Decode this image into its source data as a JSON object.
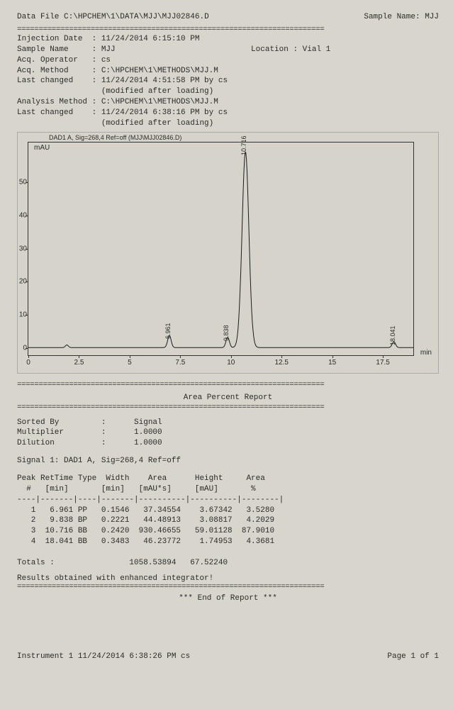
{
  "header": {
    "data_file_label": "Data File",
    "data_file_path": "C:\\HPCHEM\\1\\DATA\\MJJ\\MJJ02846.D",
    "sample_name_label": "Sample Name:",
    "sample_name_value": "MJJ"
  },
  "separator": "=======================================================================",
  "meta": [
    {
      "label": "Injection Date",
      "value": "11/24/2014 6:15:10 PM"
    },
    {
      "label": "Sample Name",
      "value": "MJJ",
      "extra_label": "Location :",
      "extra_value": "Vial 1"
    },
    {
      "label": "Acq. Operator",
      "value": "cs"
    },
    {
      "label": "Acq. Method",
      "value": "C:\\HPCHEM\\1\\METHODS\\MJJ.M"
    },
    {
      "label": "Last changed",
      "value": "11/24/2014 4:51:58 PM by cs"
    },
    {
      "label": "",
      "value": "(modified after loading)"
    },
    {
      "label": "Analysis Method",
      "value": "C:\\HPCHEM\\1\\METHODS\\MJJ.M"
    },
    {
      "label": "Last changed",
      "value": "11/24/2014 6:38:16 PM by cs"
    },
    {
      "label": "",
      "value": "(modified after loading)"
    }
  ],
  "chart": {
    "title": "DAD1 A, Sig=268,4 Ref=off (MJJ\\MJJ02846.D)",
    "ylabel": "mAU",
    "xlabel": "min",
    "ylim": [
      -2,
      62
    ],
    "xlim": [
      0,
      19
    ],
    "yticks": [
      0,
      10,
      20,
      30,
      40,
      50
    ],
    "xticks": [
      0,
      2.5,
      5,
      7.5,
      10,
      12.5,
      15,
      17.5
    ],
    "line_color": "#1a1a1a",
    "background": "#d6d4ca",
    "peaks": [
      {
        "rt": 6.961,
        "height": 3.67,
        "label": "6.961"
      },
      {
        "rt": 9.838,
        "height": 3.09,
        "label": "9.838"
      },
      {
        "rt": 10.716,
        "height": 59.01,
        "label": "10.716"
      },
      {
        "rt": 18.041,
        "height": 1.75,
        "label": "18.041"
      }
    ]
  },
  "area_report": {
    "title": "Area Percent Report",
    "params": [
      {
        "label": "Sorted By",
        "value": "Signal"
      },
      {
        "label": "Multiplier",
        "value": "1.0000"
      },
      {
        "label": "Dilution",
        "value": "1.0000"
      }
    ],
    "signal_line": "Signal 1: DAD1 A, Sig=268,4 Ref=off",
    "table_header1": "Peak RetTime Type  Width    Area      Height     Area",
    "table_header2": "  #   [min]       [min]   [mAU*s]     [mAU]       %",
    "table_divider": "----|-------|----|-------|----------|----------|--------|",
    "rows": [
      {
        "n": "1",
        "rt": "6.961",
        "type": "PP",
        "width": "0.1546",
        "area": "37.34554",
        "height": "3.67342",
        "pct": "3.5280"
      },
      {
        "n": "2",
        "rt": "9.838",
        "type": "BP",
        "width": "0.2221",
        "area": "44.48913",
        "height": "3.08817",
        "pct": "4.2029"
      },
      {
        "n": "3",
        "rt": "10.716",
        "type": "BB",
        "width": "0.2420",
        "area": "930.46655",
        "height": "59.01128",
        "pct": "87.9010"
      },
      {
        "n": "4",
        "rt": "18.041",
        "type": "BB",
        "width": "0.3483",
        "area": "46.23772",
        "height": "1.74953",
        "pct": "4.3681"
      }
    ],
    "totals_label": "Totals :",
    "totals_area": "1058.53894",
    "totals_height": "67.52240",
    "footnote": "Results obtained with enhanced integrator!",
    "end": "*** End of Report ***"
  },
  "footer": {
    "left": "Instrument 1 11/24/2014 6:38:26 PM cs",
    "right": "Page 1 of 1"
  }
}
